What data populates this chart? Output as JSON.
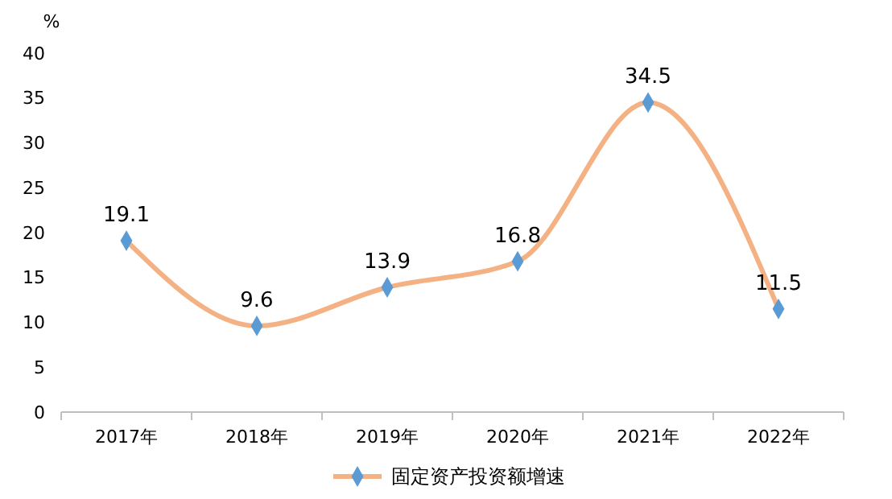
{
  "chart_data": {
    "type": "line",
    "ylabel": "%",
    "categories": [
      "2017年",
      "2018年",
      "2019年",
      "2020年",
      "2021年",
      "2022年"
    ],
    "series": [
      {
        "name": "固定资产投资额增速",
        "color": "#f4b183",
        "values": [
          19.1,
          9.6,
          13.9,
          16.8,
          34.5,
          11.5
        ]
      }
    ],
    "ylim": [
      0,
      40
    ],
    "yticks": [
      0,
      5,
      10,
      15,
      20,
      25,
      30,
      35,
      40
    ],
    "grid": false,
    "legend": "bottom",
    "marker": "diamond",
    "line_style": "solid",
    "data_labels": true
  }
}
